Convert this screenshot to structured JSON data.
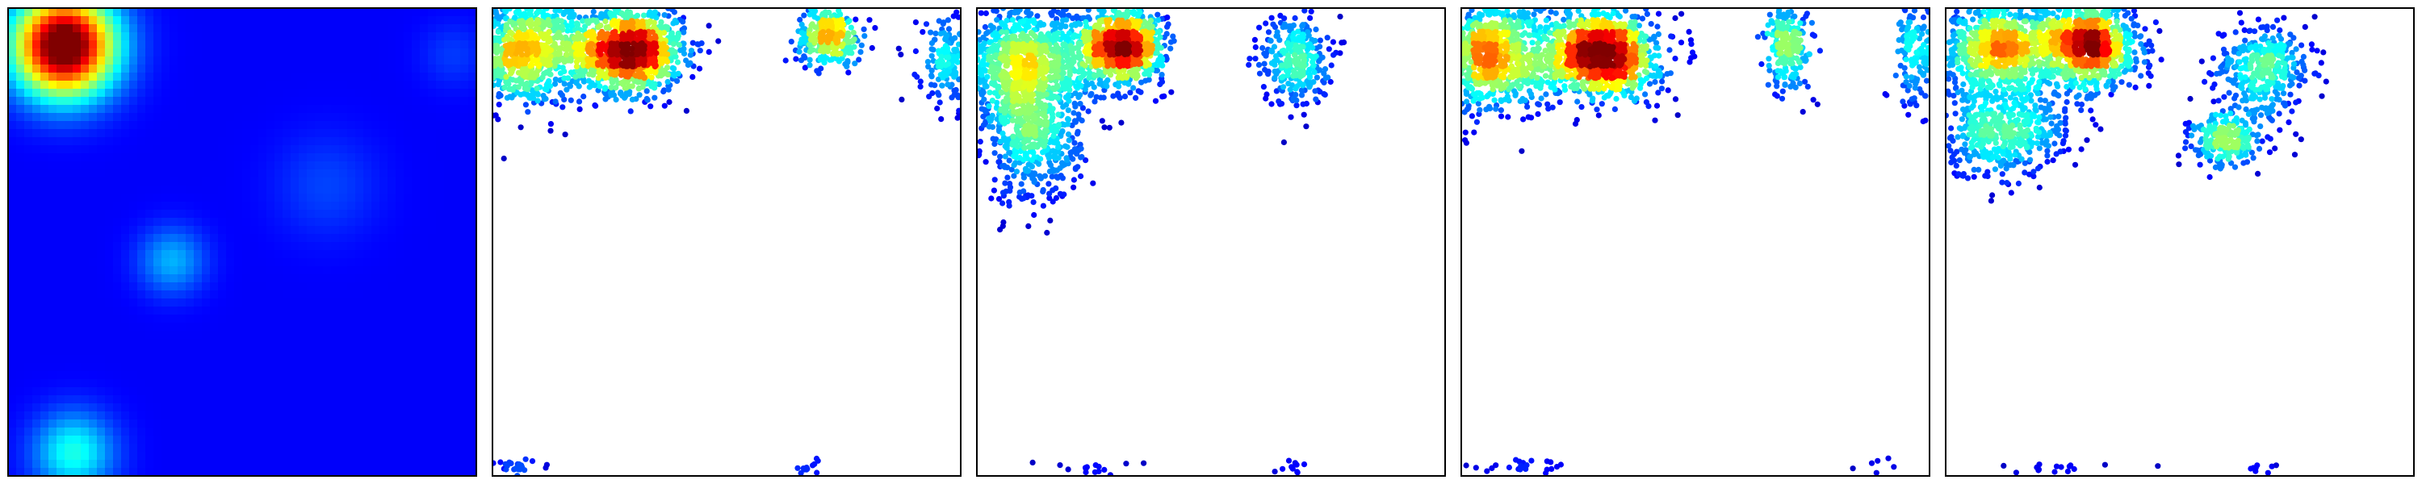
{
  "chart_data": [
    {
      "type": "heatmap",
      "title": "",
      "xlabel": "",
      "ylabel": "",
      "ticks": "none",
      "colormap": "jet",
      "peaks": [
        {
          "x": 0.12,
          "y": 0.92,
          "sigma": 0.075,
          "weight": 1.0
        },
        {
          "x": 0.14,
          "y": 0.05,
          "sigma": 0.06,
          "weight": 0.28
        },
        {
          "x": 0.35,
          "y": 0.46,
          "sigma": 0.05,
          "weight": 0.18
        },
        {
          "x": 0.68,
          "y": 0.62,
          "sigma": 0.08,
          "weight": 0.07
        },
        {
          "x": 0.95,
          "y": 0.9,
          "sigma": 0.05,
          "weight": 0.06
        }
      ],
      "background_level": 0.12
    },
    {
      "type": "scatter",
      "title": "",
      "xlabel": "",
      "ylabel": "",
      "ticks": "none",
      "colormap": "jet",
      "xlim": [
        0,
        1
      ],
      "ylim": [
        0,
        1
      ],
      "clusters": [
        {
          "x": 0.06,
          "y": 0.91,
          "sx": 0.07,
          "sy": 0.06,
          "n": 900
        },
        {
          "x": 0.29,
          "y": 0.91,
          "sx": 0.06,
          "sy": 0.045,
          "n": 1100
        },
        {
          "x": 0.72,
          "y": 0.94,
          "sx": 0.035,
          "sy": 0.03,
          "n": 300
        },
        {
          "x": 0.98,
          "y": 0.89,
          "sx": 0.035,
          "sy": 0.05,
          "n": 200
        },
        {
          "x": 0.05,
          "y": 0.02,
          "sx": 0.04,
          "sy": 0.008,
          "n": 25
        },
        {
          "x": 0.68,
          "y": 0.02,
          "sx": 0.02,
          "sy": 0.008,
          "n": 12
        }
      ]
    },
    {
      "type": "scatter",
      "title": "",
      "xlabel": "",
      "ylabel": "",
      "ticks": "none",
      "colormap": "jet",
      "xlim": [
        0,
        1
      ],
      "ylim": [
        0,
        1
      ],
      "clusters": [
        {
          "x": 0.1,
          "y": 0.88,
          "sx": 0.08,
          "sy": 0.06,
          "n": 1000
        },
        {
          "x": 0.12,
          "y": 0.72,
          "sx": 0.05,
          "sy": 0.07,
          "n": 500
        },
        {
          "x": 0.31,
          "y": 0.92,
          "sx": 0.045,
          "sy": 0.04,
          "n": 900
        },
        {
          "x": 0.68,
          "y": 0.89,
          "sx": 0.035,
          "sy": 0.05,
          "n": 300
        },
        {
          "x": 0.24,
          "y": 0.02,
          "sx": 0.06,
          "sy": 0.008,
          "n": 15
        },
        {
          "x": 0.67,
          "y": 0.02,
          "sx": 0.02,
          "sy": 0.008,
          "n": 10
        }
      ]
    },
    {
      "type": "scatter",
      "title": "",
      "xlabel": "",
      "ylabel": "",
      "ticks": "none",
      "colormap": "jet",
      "xlim": [
        0,
        1
      ],
      "ylim": [
        0,
        1
      ],
      "clusters": [
        {
          "x": 0.06,
          "y": 0.9,
          "sx": 0.07,
          "sy": 0.06,
          "n": 900
        },
        {
          "x": 0.3,
          "y": 0.9,
          "sx": 0.06,
          "sy": 0.045,
          "n": 1100
        },
        {
          "x": 0.7,
          "y": 0.92,
          "sx": 0.025,
          "sy": 0.05,
          "n": 220
        },
        {
          "x": 0.97,
          "y": 0.91,
          "sx": 0.02,
          "sy": 0.06,
          "n": 150
        },
        {
          "x": 0.15,
          "y": 0.02,
          "sx": 0.08,
          "sy": 0.008,
          "n": 25
        },
        {
          "x": 0.9,
          "y": 0.02,
          "sx": 0.05,
          "sy": 0.008,
          "n": 6
        }
      ]
    },
    {
      "type": "scatter",
      "title": "",
      "xlabel": "",
      "ylabel": "",
      "ticks": "none",
      "colormap": "jet",
      "xlim": [
        0,
        1
      ],
      "ylim": [
        0,
        1
      ],
      "clusters": [
        {
          "x": 0.12,
          "y": 0.91,
          "sx": 0.07,
          "sy": 0.05,
          "n": 900
        },
        {
          "x": 0.12,
          "y": 0.74,
          "sx": 0.07,
          "sy": 0.05,
          "n": 500
        },
        {
          "x": 0.31,
          "y": 0.92,
          "sx": 0.05,
          "sy": 0.045,
          "n": 900
        },
        {
          "x": 0.68,
          "y": 0.87,
          "sx": 0.05,
          "sy": 0.05,
          "n": 350
        },
        {
          "x": 0.6,
          "y": 0.72,
          "sx": 0.04,
          "sy": 0.03,
          "n": 250
        },
        {
          "x": 0.25,
          "y": 0.02,
          "sx": 0.08,
          "sy": 0.008,
          "n": 15
        },
        {
          "x": 0.68,
          "y": 0.02,
          "sx": 0.02,
          "sy": 0.008,
          "n": 8
        }
      ]
    }
  ]
}
